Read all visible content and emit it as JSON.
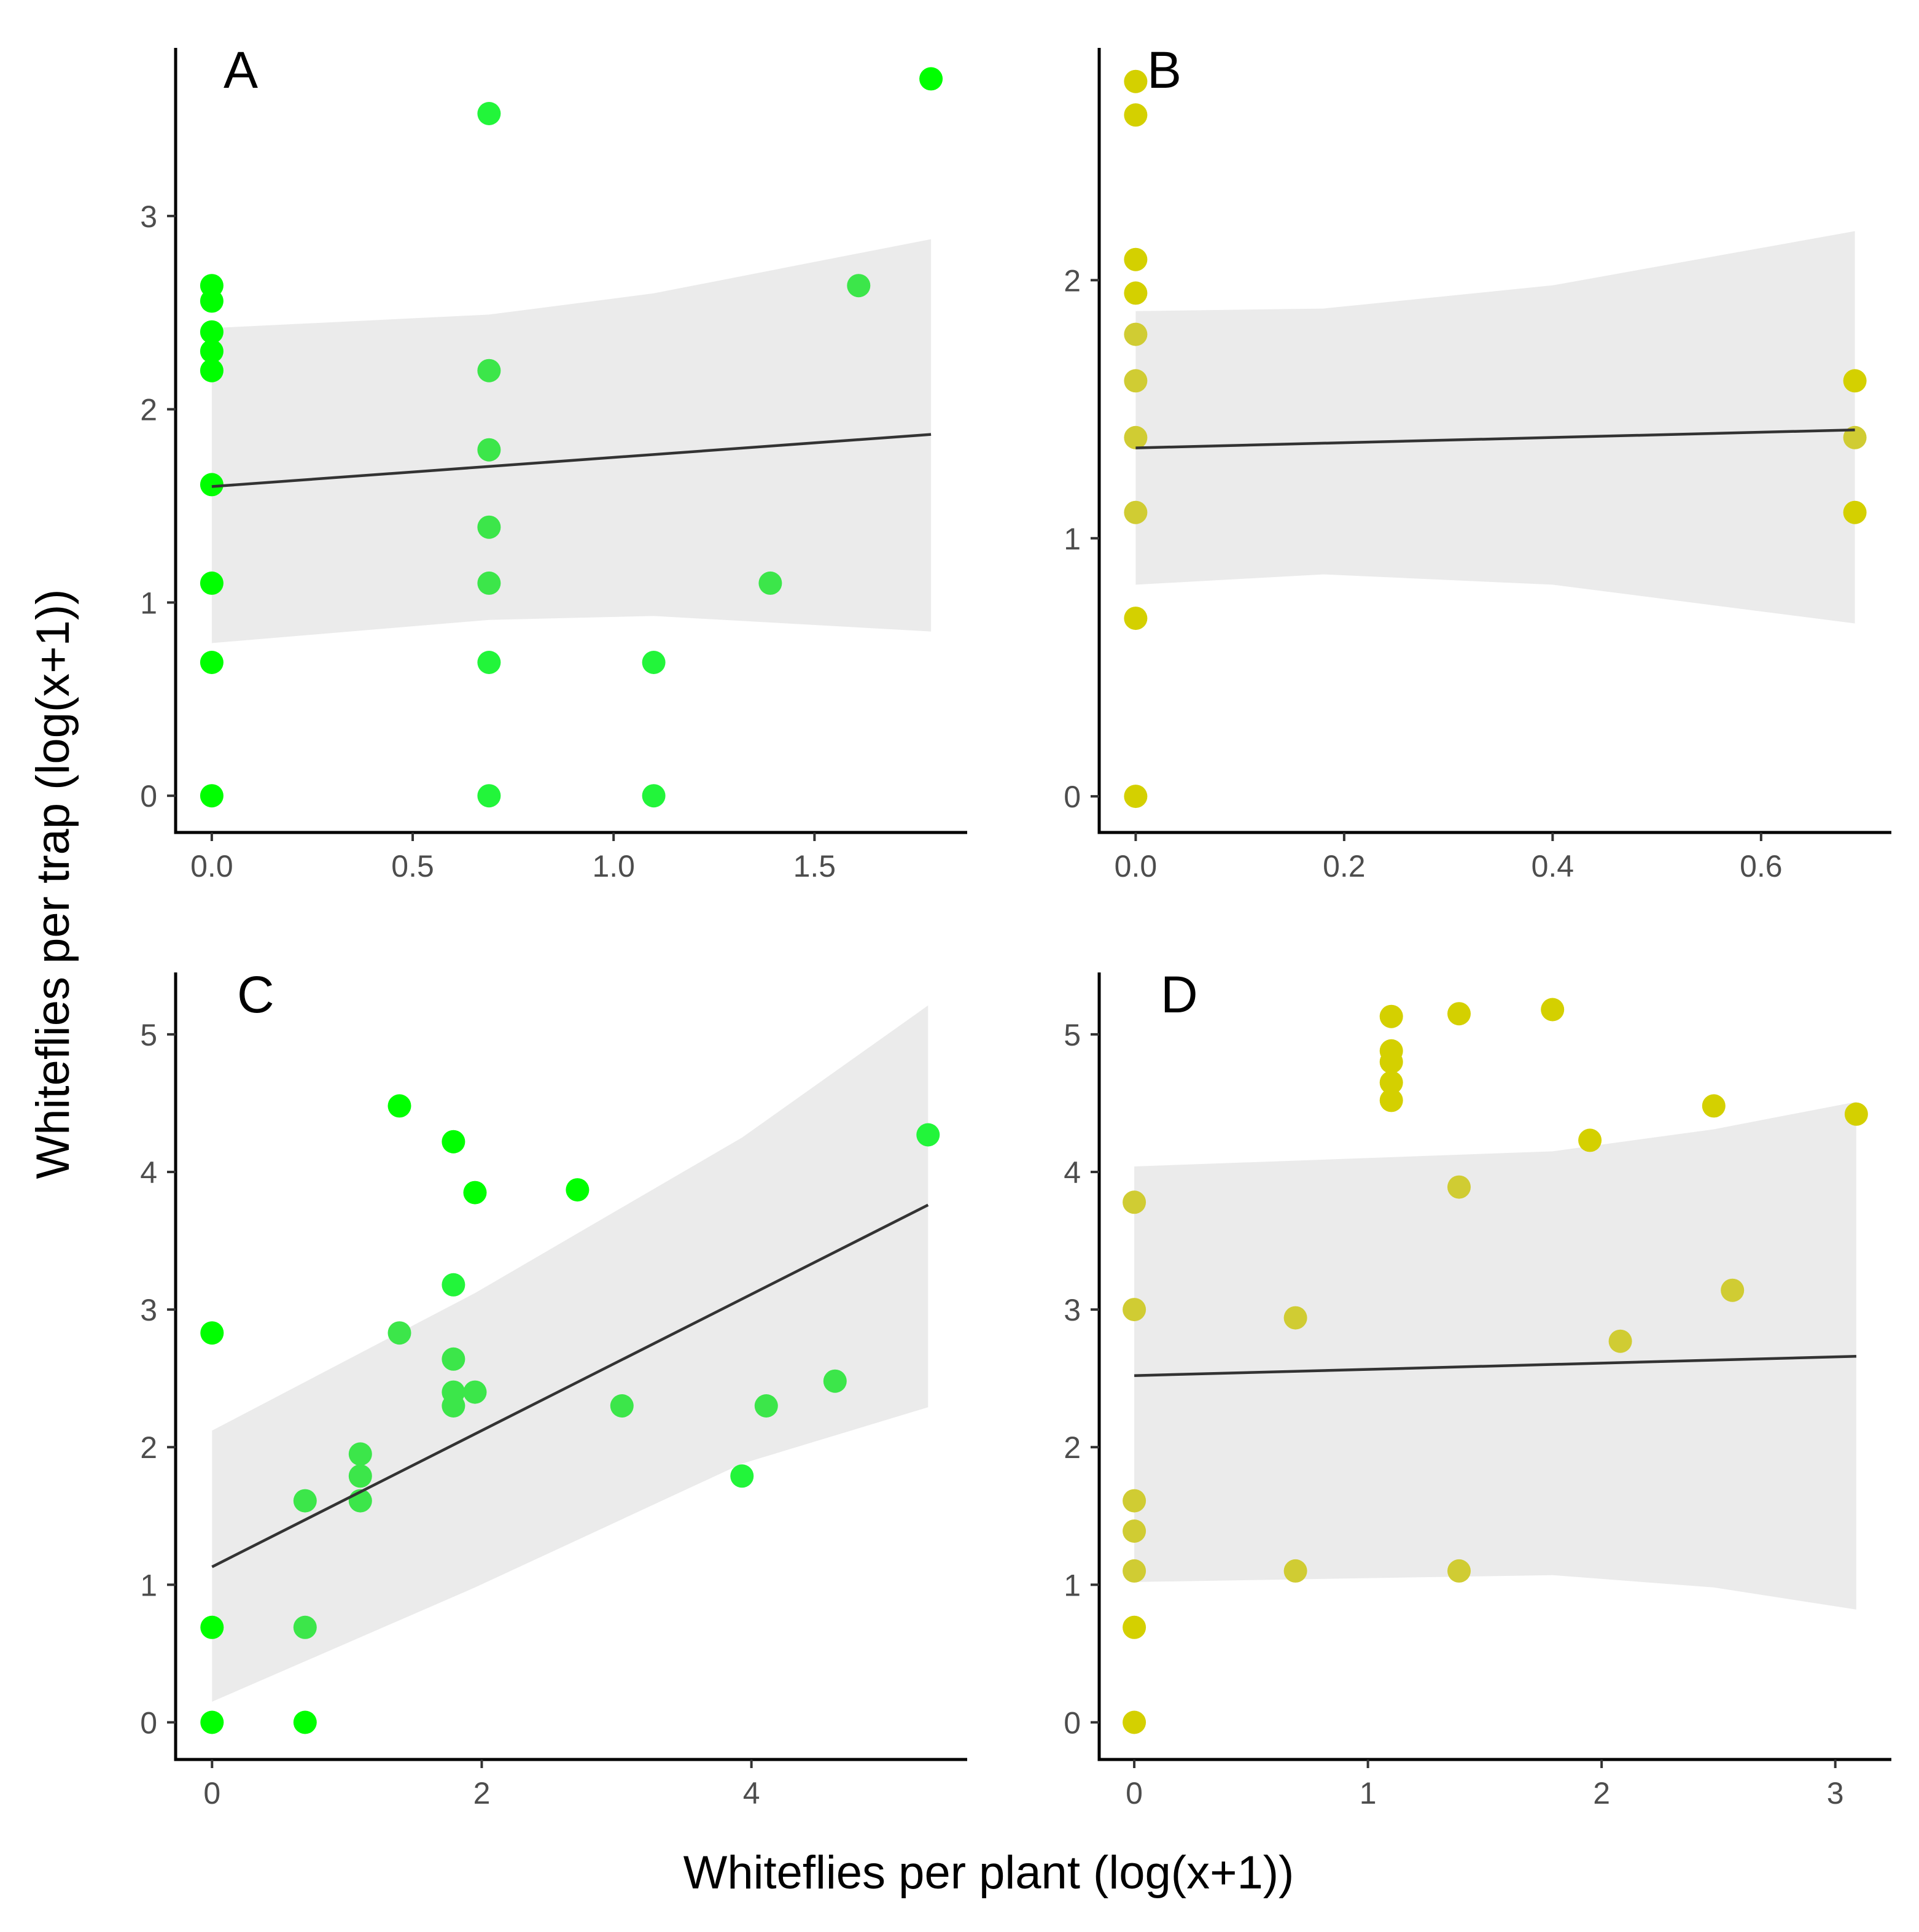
{
  "figure": {
    "xlabel": "Whiteflies per plant (log(x+1))",
    "ylabel": "Whiteflies per trap (log(x+1))"
  },
  "colors": {
    "band": "#ebebeb",
    "fit_line": "#333333"
  },
  "chart_data": [
    {
      "type": "scatter",
      "panel": "A",
      "xlim": [
        -0.09,
        1.88
      ],
      "ylim": [
        -0.19,
        3.87
      ],
      "xticks": [
        0.0,
        0.5,
        1.0,
        1.5
      ],
      "xtick_labels": [
        "0.0",
        "0.5",
        "1.0",
        "1.5"
      ],
      "yticks": [
        0,
        1,
        2,
        3
      ],
      "ytick_labels": [
        "0",
        "1",
        "2",
        "3"
      ],
      "points": [
        {
          "x": 0,
          "y": 2.64,
          "color": "#00ff00"
        },
        {
          "x": 0,
          "y": 2.56,
          "color": "#00ff00"
        },
        {
          "x": 0,
          "y": 2.4,
          "color": "#00ff00"
        },
        {
          "x": 0,
          "y": 2.3,
          "color": "#00ff00"
        },
        {
          "x": 0,
          "y": 2.2,
          "color": "#00ff00"
        },
        {
          "x": 0,
          "y": 1.61,
          "color": "#00ff00"
        },
        {
          "x": 0,
          "y": 1.1,
          "color": "#00ff00"
        },
        {
          "x": 0,
          "y": 0.69,
          "color": "#00ff00"
        },
        {
          "x": 0,
          "y": 0.0,
          "color": "#00ff00"
        },
        {
          "x": 0.69,
          "y": 3.53,
          "color": "#22f53a"
        },
        {
          "x": 0.69,
          "y": 2.2,
          "color": "#3ce64a"
        },
        {
          "x": 0.69,
          "y": 1.79,
          "color": "#3ce64a"
        },
        {
          "x": 0.69,
          "y": 1.39,
          "color": "#3ce64a"
        },
        {
          "x": 0.69,
          "y": 1.1,
          "color": "#3ce64a"
        },
        {
          "x": 0.69,
          "y": 0.69,
          "color": "#22f53a"
        },
        {
          "x": 0.69,
          "y": 0.0,
          "color": "#22f53a"
        },
        {
          "x": 1.1,
          "y": 0.69,
          "color": "#22f53a"
        },
        {
          "x": 1.1,
          "y": 0.0,
          "color": "#22f53a"
        },
        {
          "x": 1.39,
          "y": 1.1,
          "color": "#3ce64a"
        },
        {
          "x": 1.61,
          "y": 2.64,
          "color": "#3ce64a"
        },
        {
          "x": 1.79,
          "y": 3.71,
          "color": "#00ff00"
        }
      ],
      "fit": {
        "x": [
          0,
          1.79
        ],
        "y": [
          1.6,
          1.87
        ]
      },
      "band": {
        "x": [
          0,
          0.69,
          1.1,
          1.79
        ],
        "upper": [
          2.42,
          2.49,
          2.6,
          2.88
        ],
        "lower": [
          0.79,
          0.91,
          0.93,
          0.85
        ]
      }
    },
    {
      "type": "scatter",
      "panel": "B",
      "xlim": [
        -0.035,
        0.725
      ],
      "ylim": [
        -0.14,
        2.9
      ],
      "xticks": [
        0.0,
        0.2,
        0.4,
        0.6
      ],
      "xtick_labels": [
        "0.0",
        "0.2",
        "0.4",
        "0.6"
      ],
      "yticks": [
        0,
        1,
        2
      ],
      "ytick_labels": [
        "0",
        "1",
        "2"
      ],
      "points": [
        {
          "x": 0,
          "y": 2.77,
          "color": "#d4d000"
        },
        {
          "x": 0,
          "y": 2.64,
          "color": "#d4d000"
        },
        {
          "x": 0,
          "y": 2.08,
          "color": "#d4d000"
        },
        {
          "x": 0,
          "y": 1.95,
          "color": "#d4d000"
        },
        {
          "x": 0,
          "y": 1.79,
          "color": "#d0cc33"
        },
        {
          "x": 0,
          "y": 1.61,
          "color": "#d0cc33"
        },
        {
          "x": 0,
          "y": 1.39,
          "color": "#d0cc33"
        },
        {
          "x": 0,
          "y": 1.1,
          "color": "#d0cc33"
        },
        {
          "x": 0,
          "y": 0.69,
          "color": "#d4d000"
        },
        {
          "x": 0,
          "y": 0.0,
          "color": "#d4d000"
        },
        {
          "x": 0.69,
          "y": 1.61,
          "color": "#d4d000"
        },
        {
          "x": 0.69,
          "y": 1.39,
          "color": "#d0cc33"
        },
        {
          "x": 0.69,
          "y": 1.1,
          "color": "#d4d000"
        }
      ],
      "fit": {
        "x": [
          0,
          0.69
        ],
        "y": [
          1.35,
          1.42
        ]
      },
      "band": {
        "x": [
          0,
          0.18,
          0.4,
          0.69
        ],
        "upper": [
          1.88,
          1.89,
          1.98,
          2.19
        ],
        "lower": [
          0.82,
          0.86,
          0.82,
          0.67
        ]
      }
    },
    {
      "type": "scatter",
      "panel": "C",
      "xlim": [
        -0.27,
        5.6
      ],
      "ylim": [
        -0.27,
        5.45
      ],
      "xticks": [
        0,
        2,
        4
      ],
      "xtick_labels": [
        "0",
        "2",
        "4"
      ],
      "yticks": [
        0,
        1,
        2,
        3,
        4,
        5
      ],
      "ytick_labels": [
        "0",
        "1",
        "2",
        "3",
        "4",
        "5"
      ],
      "points": [
        {
          "x": 0,
          "y": 2.83,
          "color": "#00ff00"
        },
        {
          "x": 0,
          "y": 0.69,
          "color": "#00ff00"
        },
        {
          "x": 0,
          "y": 0.0,
          "color": "#00ff00"
        },
        {
          "x": 0.69,
          "y": 1.61,
          "color": "#3ce64a"
        },
        {
          "x": 0.69,
          "y": 0.69,
          "color": "#3ce64a"
        },
        {
          "x": 0.69,
          "y": 0.0,
          "color": "#00ff00"
        },
        {
          "x": 1.1,
          "y": 1.95,
          "color": "#3ce64a"
        },
        {
          "x": 1.1,
          "y": 1.79,
          "color": "#3ce64a"
        },
        {
          "x": 1.1,
          "y": 1.61,
          "color": "#3ce64a"
        },
        {
          "x": 1.39,
          "y": 4.48,
          "color": "#00ff00"
        },
        {
          "x": 1.39,
          "y": 2.83,
          "color": "#3ce64a"
        },
        {
          "x": 1.79,
          "y": 4.22,
          "color": "#00ff00"
        },
        {
          "x": 1.79,
          "y": 3.18,
          "color": "#22f53a"
        },
        {
          "x": 1.79,
          "y": 2.64,
          "color": "#3ce64a"
        },
        {
          "x": 1.79,
          "y": 2.4,
          "color": "#3ce64a"
        },
        {
          "x": 1.79,
          "y": 2.3,
          "color": "#3ce64a"
        },
        {
          "x": 1.95,
          "y": 3.85,
          "color": "#00ff00"
        },
        {
          "x": 1.95,
          "y": 2.4,
          "color": "#3ce64a"
        },
        {
          "x": 2.71,
          "y": 3.87,
          "color": "#00ff00"
        },
        {
          "x": 3.04,
          "y": 2.3,
          "color": "#3ce64a"
        },
        {
          "x": 3.93,
          "y": 1.79,
          "color": "#22f53a"
        },
        {
          "x": 4.11,
          "y": 2.3,
          "color": "#3ce64a"
        },
        {
          "x": 4.62,
          "y": 2.48,
          "color": "#3ce64a"
        },
        {
          "x": 5.31,
          "y": 4.27,
          "color": "#22f53a"
        }
      ],
      "fit": {
        "x": [
          0,
          5.31
        ],
        "y": [
          1.13,
          3.76
        ]
      },
      "band": {
        "x": [
          0,
          1.95,
          3.93,
          5.31
        ],
        "upper": [
          2.12,
          3.12,
          4.25,
          5.21
        ],
        "lower": [
          0.15,
          0.98,
          1.88,
          2.29
        ]
      }
    },
    {
      "type": "scatter",
      "panel": "D",
      "xlim": [
        -0.15,
        3.24
      ],
      "ylim": [
        -0.27,
        5.45
      ],
      "xticks": [
        0,
        1,
        2,
        3
      ],
      "xtick_labels": [
        "0",
        "1",
        "2",
        "3"
      ],
      "yticks": [
        0,
        1,
        2,
        3,
        4,
        5
      ],
      "ytick_labels": [
        "0",
        "1",
        "2",
        "3",
        "4",
        "5"
      ],
      "points": [
        {
          "x": 0,
          "y": 3.78,
          "color": "#d0cc33"
        },
        {
          "x": 0,
          "y": 3.0,
          "color": "#d0cc33"
        },
        {
          "x": 0,
          "y": 1.61,
          "color": "#d0cc33"
        },
        {
          "x": 0,
          "y": 1.39,
          "color": "#d0cc33"
        },
        {
          "x": 0,
          "y": 1.1,
          "color": "#d0cc33"
        },
        {
          "x": 0,
          "y": 0.69,
          "color": "#d4d000"
        },
        {
          "x": 0,
          "y": 0.0,
          "color": "#d4d000"
        },
        {
          "x": 0.69,
          "y": 2.94,
          "color": "#d0cc33"
        },
        {
          "x": 0.69,
          "y": 1.1,
          "color": "#d0cc33"
        },
        {
          "x": 1.1,
          "y": 5.13,
          "color": "#d4d000"
        },
        {
          "x": 1.1,
          "y": 4.88,
          "color": "#d4d000"
        },
        {
          "x": 1.1,
          "y": 4.8,
          "color": "#d4d000"
        },
        {
          "x": 1.1,
          "y": 4.65,
          "color": "#d4d000"
        },
        {
          "x": 1.1,
          "y": 4.52,
          "color": "#d4d000"
        },
        {
          "x": 1.39,
          "y": 5.15,
          "color": "#d4d000"
        },
        {
          "x": 1.39,
          "y": 3.89,
          "color": "#d0cc33"
        },
        {
          "x": 1.39,
          "y": 1.1,
          "color": "#d0cc33"
        },
        {
          "x": 1.79,
          "y": 5.18,
          "color": "#d4d000"
        },
        {
          "x": 1.95,
          "y": 4.23,
          "color": "#d4d000"
        },
        {
          "x": 2.08,
          "y": 2.77,
          "color": "#d0cc33"
        },
        {
          "x": 2.48,
          "y": 4.48,
          "color": "#d4d000"
        },
        {
          "x": 2.56,
          "y": 3.14,
          "color": "#d0cc33"
        },
        {
          "x": 3.09,
          "y": 4.42,
          "color": "#d4d000"
        }
      ],
      "fit": {
        "x": [
          0,
          3.09
        ],
        "y": [
          2.52,
          2.66
        ]
      },
      "band": {
        "x": [
          0,
          1.79,
          2.48,
          3.09
        ],
        "upper": [
          4.04,
          4.15,
          4.31,
          4.51
        ],
        "lower": [
          1.02,
          1.07,
          0.98,
          0.82
        ]
      }
    }
  ]
}
